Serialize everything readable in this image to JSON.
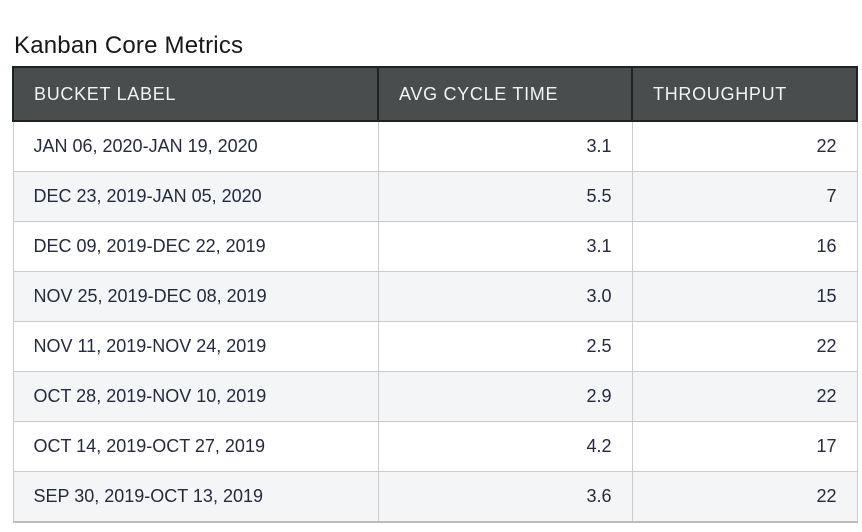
{
  "page": {
    "title": "Kanban Core Metrics"
  },
  "colors": {
    "header_bg": "#4a4d4e",
    "header_border": "#1f2223",
    "header_text": "#f2f3f3",
    "body_text": "#242a40",
    "stripe_bg": "#f4f5f7",
    "body_border": "#c9cbcd",
    "background": "#ffffff"
  },
  "table": {
    "columns": [
      {
        "label": "BUCKET LABEL"
      },
      {
        "label": "AVG CYCLE TIME"
      },
      {
        "label": "THROUGHPUT"
      }
    ],
    "rows": [
      {
        "bucket_label": "JAN 06, 2020-JAN 19, 2020",
        "avg_cycle_time": "3.1",
        "throughput": "22"
      },
      {
        "bucket_label": "DEC 23, 2019-JAN 05, 2020",
        "avg_cycle_time": "5.5",
        "throughput": "7"
      },
      {
        "bucket_label": "DEC 09, 2019-DEC 22, 2019",
        "avg_cycle_time": "3.1",
        "throughput": "16"
      },
      {
        "bucket_label": "NOV 25, 2019-DEC 08, 2019",
        "avg_cycle_time": "3.0",
        "throughput": "15"
      },
      {
        "bucket_label": "NOV 11, 2019-NOV 24, 2019",
        "avg_cycle_time": "2.5",
        "throughput": "22"
      },
      {
        "bucket_label": "OCT 28, 2019-NOV 10, 2019",
        "avg_cycle_time": "2.9",
        "throughput": "22"
      },
      {
        "bucket_label": "OCT 14, 2019-OCT 27, 2019",
        "avg_cycle_time": "4.2",
        "throughput": "17"
      },
      {
        "bucket_label": "SEP 30, 2019-OCT 13, 2019",
        "avg_cycle_time": "3.6",
        "throughput": "22"
      }
    ]
  },
  "chart_data": {
    "type": "table",
    "title": "Kanban Core Metrics",
    "categories": [
      "JAN 06, 2020-JAN 19, 2020",
      "DEC 23, 2019-JAN 05, 2020",
      "DEC 09, 2019-DEC 22, 2019",
      "NOV 25, 2019-DEC 08, 2019",
      "NOV 11, 2019-NOV 24, 2019",
      "OCT 28, 2019-NOV 10, 2019",
      "OCT 14, 2019-OCT 27, 2019",
      "SEP 30, 2019-OCT 13, 2019"
    ],
    "series": [
      {
        "name": "AVG CYCLE TIME",
        "values": [
          3.1,
          5.5,
          3.1,
          3.0,
          2.5,
          2.9,
          4.2,
          3.6
        ]
      },
      {
        "name": "THROUGHPUT",
        "values": [
          22,
          7,
          16,
          15,
          22,
          22,
          17,
          22
        ]
      }
    ]
  }
}
